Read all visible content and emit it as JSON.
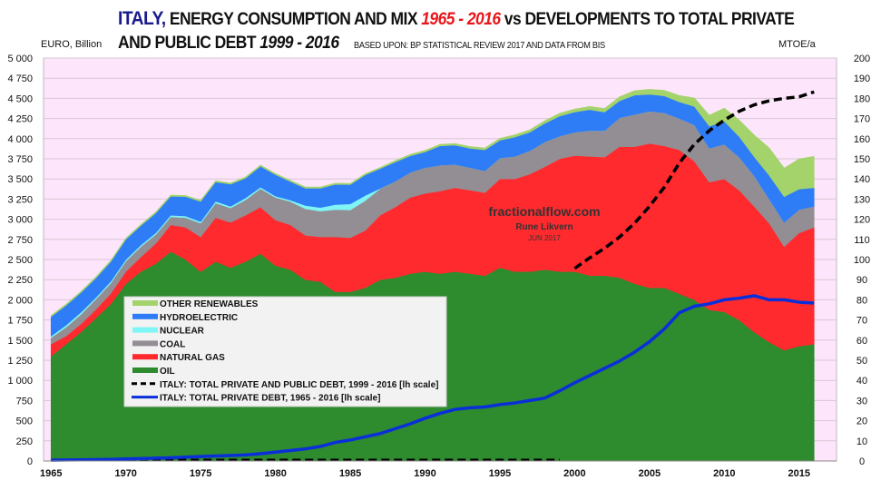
{
  "title": {
    "country": "ITALY,",
    "part1": " ENERGY CONSUMPTION AND MIX ",
    "years1": "1965 - 2016",
    "part2": " vs DEVELOPMENTS TO TOTAL PRIVATE",
    "line2": "AND PUBLIC DEBT ",
    "years2": "1999 - 2016",
    "source": "BASED UPON: BP STATISTICAL REVIEW  2017 AND DATA FROM BIS"
  },
  "watermark": {
    "site": "fractionalflow.com",
    "author": "Rune Likvern",
    "date": "JUN 2017"
  },
  "colors": {
    "plot_bg": "#fde6fb",
    "oil": "#2e8b2e",
    "gas": "#ff2a2e",
    "coal": "#938e93",
    "nuclear": "#7ff5f5",
    "hydro": "#2e7cf6",
    "renewables": "#a4d36b",
    "private_debt": "#0a2fd9",
    "total_debt": "#000000"
  },
  "chart_data": {
    "type": "area",
    "title": "ITALY, ENERGY CONSUMPTION AND MIX 1965 - 2016 vs DEVELOPMENTS TO TOTAL PRIVATE AND PUBLIC DEBT 1999 - 2016",
    "ylabel_left": "EURO, Billion",
    "ylabel_right": "MTOE/a",
    "ylim_left": [
      0,
      5000
    ],
    "ylim_right": [
      0,
      200
    ],
    "yticks_left": [
      "0",
      "250",
      "500",
      "750",
      "1 000",
      "1 250",
      "1 500",
      "1 750",
      "2 000",
      "2 250",
      "2 500",
      "2 750",
      "3 000",
      "3 250",
      "3 500",
      "3 750",
      "4 000",
      "4 250",
      "4 500",
      "4 750",
      "5 000"
    ],
    "yticks_right": [
      "0",
      "10",
      "20",
      "30",
      "40",
      "50",
      "60",
      "70",
      "80",
      "90",
      "100",
      "110",
      "120",
      "130",
      "140",
      "150",
      "160",
      "170",
      "180",
      "190",
      "200"
    ],
    "xticks": [
      "1965",
      "1970",
      "1975",
      "1980",
      "1985",
      "1990",
      "1995",
      "2000",
      "2005",
      "2010",
      "2015"
    ],
    "grid": true,
    "legend": "inside-bottom-left",
    "x": [
      1965,
      1966,
      1967,
      1968,
      1969,
      1970,
      1971,
      1972,
      1973,
      1974,
      1975,
      1976,
      1977,
      1978,
      1979,
      1980,
      1981,
      1982,
      1983,
      1984,
      1985,
      1986,
      1987,
      1988,
      1989,
      1990,
      1991,
      1992,
      1993,
      1994,
      1995,
      1996,
      1997,
      1998,
      1999,
      2000,
      2001,
      2002,
      2003,
      2004,
      2005,
      2006,
      2007,
      2008,
      2009,
      2010,
      2011,
      2012,
      2013,
      2014,
      2015,
      2016
    ],
    "stacked_series_mtoe": [
      {
        "name": "OIL",
        "values": [
          52,
          58,
          64,
          71,
          78,
          88,
          94,
          98,
          104,
          100,
          94,
          99,
          96,
          99,
          103,
          97,
          95,
          90,
          89,
          84,
          84,
          86,
          90,
          91,
          93,
          94,
          93,
          94,
          93,
          92,
          96,
          94,
          94,
          95,
          94,
          94,
          92,
          92,
          91,
          88,
          86,
          86,
          83,
          80,
          75,
          74,
          70,
          64,
          59,
          55,
          57,
          58
        ]
      },
      {
        "name": "NATURAL GAS",
        "values": [
          6,
          4,
          4,
          4.2,
          5.2,
          6,
          7.2,
          10,
          13.2,
          16,
          17.2,
          21.8,
          22.4,
          23,
          23,
          22.6,
          22.2,
          22,
          22.2,
          27.2,
          26.8,
          28.4,
          32,
          35,
          37.8,
          38.8,
          41,
          41.6,
          41.4,
          41.2,
          44,
          46,
          48.4,
          51,
          56,
          57.6,
          59.2,
          58.8,
          65,
          68,
          71.6,
          70.4,
          71.4,
          68.8,
          63.4,
          66,
          64.4,
          62.4,
          59,
          51.4,
          56.2,
          58
        ]
      },
      {
        "name": "COAL",
        "values": [
          3.2,
          4.4,
          4.8,
          5.2,
          5.2,
          5.2,
          5.2,
          4.4,
          4,
          4.8,
          6.8,
          7.2,
          7.2,
          7.6,
          9.2,
          11.2,
          11.6,
          13.2,
          12.8,
          13.6,
          13.8,
          14.8,
          13.2,
          12.8,
          12.4,
          12.8,
          12.8,
          11.6,
          11.2,
          10.8,
          10.4,
          11.2,
          11.6,
          12.4,
          11.2,
          11.6,
          12.8,
          13.2,
          14.4,
          16,
          16,
          16.4,
          15.6,
          18,
          16.8,
          17.2,
          16.4,
          15.2,
          12,
          12,
          11.6,
          10.4
        ]
      },
      {
        "name": "NUCLEAR",
        "values": [
          0.8,
          1,
          1,
          0.8,
          0.8,
          0.8,
          0.8,
          0.8,
          0.8,
          0.8,
          0.8,
          0.9,
          0.8,
          1,
          0.7,
          0.7,
          0.7,
          1.6,
          1.8,
          2.5,
          3,
          2.6,
          0.1,
          0,
          0,
          0,
          0,
          0,
          0,
          0,
          0,
          0,
          0,
          0,
          0,
          0,
          0,
          0,
          0,
          0,
          0,
          0,
          0,
          0,
          0,
          0,
          0,
          0,
          0,
          0,
          0,
          0
        ]
      },
      {
        "name": "HYDROELECTRIC",
        "values": [
          9.6,
          9.8,
          9.8,
          9.6,
          9.8,
          10,
          9.6,
          9.8,
          9.4,
          9.6,
          10,
          9.6,
          11,
          9.8,
          10.4,
          10.6,
          9.2,
          8.6,
          9.6,
          10,
          9.6,
          10.2,
          9.8,
          9.6,
          8.2,
          7.8,
          9.6,
          9.6,
          9.6,
          10.4,
          8.8,
          9.6,
          9.2,
          9.2,
          10,
          10,
          10.4,
          9.2,
          8.4,
          9.6,
          8.4,
          8.4,
          8.2,
          9.2,
          11,
          11.4,
          10.2,
          9.4,
          11.8,
          12.8,
          10.2,
          9.2
        ]
      },
      {
        "name": "OTHER RENEWABLES",
        "values": [
          0.6,
          0.6,
          0.6,
          0.6,
          0.6,
          0.6,
          0.6,
          0.6,
          0.6,
          0.6,
          0.6,
          0.6,
          0.6,
          0.6,
          0.6,
          0.6,
          0.6,
          0.6,
          0.6,
          0.6,
          0.6,
          0.6,
          0.6,
          0.7,
          0.8,
          0.8,
          0.8,
          0.8,
          0.9,
          1,
          1,
          1.1,
          1.2,
          1.3,
          1.4,
          1.5,
          1.6,
          1.8,
          2,
          2.2,
          2.5,
          2.8,
          3.2,
          4.2,
          5.4,
          6.6,
          8.2,
          10.8,
          13.6,
          14.2,
          15,
          15.6
        ]
      }
    ],
    "line_series_euro_billion": [
      {
        "name": "ITALY: TOTAL PRIVATE AND PUBLIC DEBT, 1999 - 2016 [lh scale]",
        "style": "dashed",
        "values": [
          0,
          0,
          0,
          0,
          0,
          0,
          0,
          0,
          0,
          0,
          0,
          0,
          0,
          0,
          0,
          0,
          0,
          0,
          0,
          0,
          0,
          0,
          0,
          0,
          0,
          0,
          0,
          0,
          0,
          0,
          0,
          0,
          0,
          0,
          0,
          2390,
          2520,
          2640,
          2780,
          2950,
          3160,
          3400,
          3700,
          3930,
          4100,
          4230,
          4340,
          4420,
          4470,
          4500,
          4520,
          4580
        ]
      },
      {
        "name": "ITALY: TOTAL PRIVATE DEBT, 1965 - 2016 [lh scale]",
        "style": "solid",
        "values": [
          10,
          12,
          14,
          17,
          20,
          25,
          30,
          35,
          40,
          48,
          55,
          62,
          68,
          75,
          90,
          110,
          130,
          150,
          180,
          230,
          260,
          300,
          340,
          400,
          460,
          530,
          590,
          640,
          660,
          670,
          700,
          720,
          750,
          780,
          870,
          970,
          1060,
          1150,
          1240,
          1350,
          1480,
          1640,
          1840,
          1920,
          1950,
          2000,
          2020,
          2050,
          2000,
          2000,
          1970,
          1960
        ]
      }
    ],
    "legend_entries": [
      "OTHER RENEWABLES",
      "HYDROELECTRIC",
      "NUCLEAR",
      "COAL",
      "NATURAL GAS",
      "OIL",
      "ITALY: TOTAL PRIVATE AND PUBLIC DEBT, 1999 - 2016 [lh scale]",
      "ITALY: TOTAL PRIVATE DEBT, 1965 - 2016 [lh scale]"
    ]
  }
}
